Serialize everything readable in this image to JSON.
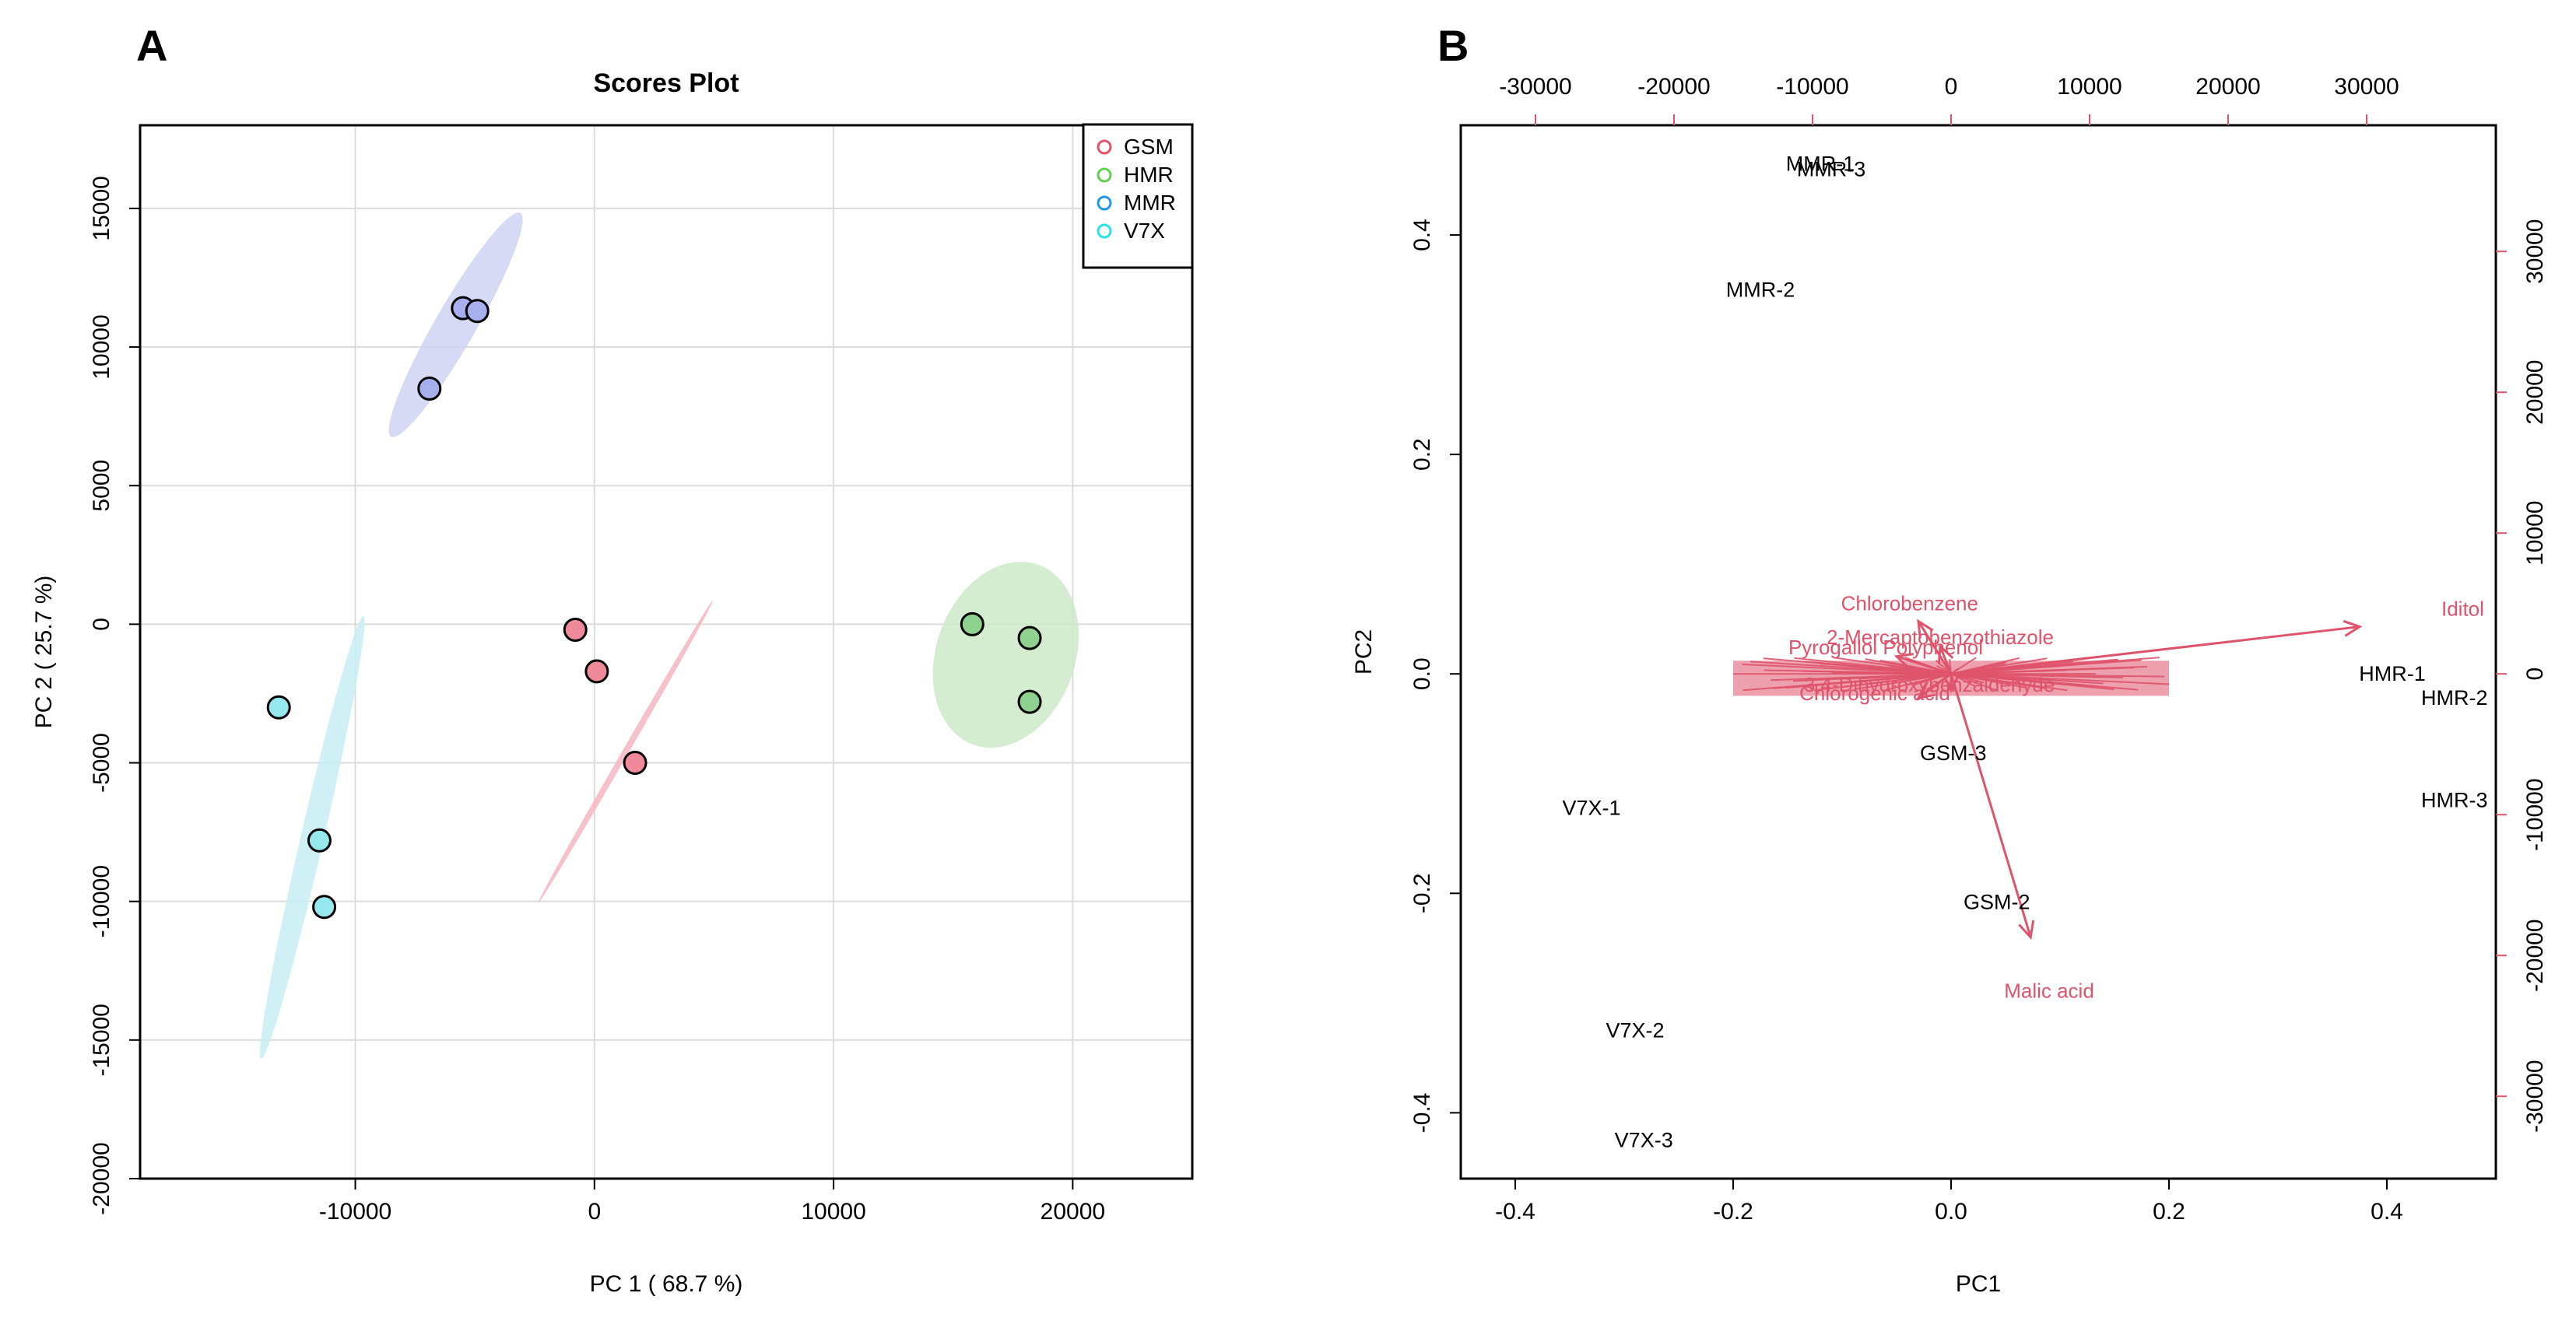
{
  "chart_data": [
    {
      "panel_label": "A",
      "type": "scatter",
      "title": "Scores Plot",
      "xlabel": "PC 1 ( 68.7 %)",
      "ylabel": "PC 2 ( 25.7 %)",
      "xlim": [
        -19000,
        25000
      ],
      "ylim": [
        -20000,
        18000
      ],
      "xticks": [
        -10000,
        0,
        10000,
        20000
      ],
      "yticks": [
        -20000,
        -15000,
        -10000,
        -5000,
        0,
        5000,
        10000,
        15000
      ],
      "grid": true,
      "legend_position": "top-right",
      "series": [
        {
          "name": "GSM",
          "color": "#f08a9b",
          "legend_color": "#df536b",
          "points": [
            [
              -800,
              -200
            ],
            [
              100,
              -1700
            ],
            [
              1700,
              -5000
            ]
          ],
          "ellipse": {
            "cx": 1300,
            "cy": -4600,
            "rx": 7300,
            "ry": 130,
            "angle_deg": 60,
            "fill": "#f4b6c1"
          }
        },
        {
          "name": "HMR",
          "color": "#8fd18f",
          "legend_color": "#61d04f",
          "points": [
            [
              15800,
              0
            ],
            [
              18200,
              -500
            ],
            [
              18200,
              -2800
            ]
          ],
          "ellipse": {
            "cx": 17200,
            "cy": -1100,
            "rx": 2900,
            "ry": 4000,
            "angle_deg": -20,
            "fill": "#cde9c8"
          }
        },
        {
          "name": "MMR",
          "color": "#a6b0ee",
          "legend_color": "#2297e6",
          "points": [
            [
              -5500,
              11400
            ],
            [
              -4900,
              11300
            ],
            [
              -6900,
              8500
            ]
          ],
          "ellipse": {
            "cx": -5800,
            "cy": 10800,
            "rx": 5400,
            "ry": 850,
            "angle_deg": 60,
            "fill": "#cfd4f3"
          }
        },
        {
          "name": "V7X",
          "color": "#96e8ef",
          "legend_color": "#28e2e5",
          "points": [
            [
              -13200,
              -3000
            ],
            [
              -11500,
              -7800
            ],
            [
              -11300,
              -10200
            ]
          ],
          "ellipse": {
            "cx": -11800,
            "cy": -7700,
            "rx": 9500,
            "ry": 480,
            "angle_deg": 77,
            "fill": "#c7eff5"
          }
        }
      ]
    },
    {
      "panel_label": "B",
      "type": "scatter",
      "subtype": "biplot",
      "title": "",
      "xlabel": "PC1",
      "ylabel": "PC2",
      "xlim": [
        -0.45,
        0.5
      ],
      "ylim": [
        -0.46,
        0.5
      ],
      "xticks": [
        -0.4,
        -0.2,
        0.0,
        0.2,
        0.4
      ],
      "yticks": [
        -0.4,
        -0.2,
        0.0,
        0.2,
        0.4
      ],
      "top_ticks": [
        -30000,
        -20000,
        -10000,
        0,
        10000,
        20000,
        30000
      ],
      "right_ticks": [
        -30000,
        -20000,
        -10000,
        0,
        10000,
        20000,
        30000
      ],
      "grid": false,
      "arrow_color": "#df536b",
      "samples": [
        {
          "label": "MMR-1",
          "x": -0.12,
          "y": 0.465
        },
        {
          "label": "MMR-3",
          "x": -0.11,
          "y": 0.46
        },
        {
          "label": "MMR-2",
          "x": -0.175,
          "y": 0.35
        },
        {
          "label": "HMR-1",
          "x": 0.405,
          "y": 0.0
        },
        {
          "label": "HMR-2",
          "x": 0.462,
          "y": -0.022
        },
        {
          "label": "HMR-3",
          "x": 0.462,
          "y": -0.115
        },
        {
          "label": "GSM-3",
          "x": 0.002,
          "y": -0.072
        },
        {
          "label": "GSM-2",
          "x": 0.042,
          "y": -0.208
        },
        {
          "label": "V7X-1",
          "x": -0.33,
          "y": -0.122
        },
        {
          "label": "V7X-2",
          "x": -0.29,
          "y": -0.325
        },
        {
          "label": "V7X-3",
          "x": -0.282,
          "y": -0.425
        }
      ],
      "loadings": [
        {
          "label": "Iditol",
          "x": 0.375,
          "y": 0.043,
          "lx": 0.45,
          "ly": 0.053,
          "anchor": "start"
        },
        {
          "label": "Malic acid",
          "x": 0.073,
          "y": -0.24,
          "lx": 0.09,
          "ly": -0.295,
          "anchor": "middle"
        },
        {
          "label": "Chlorobenzene",
          "x": -0.03,
          "y": 0.048,
          "lx": -0.038,
          "ly": 0.058,
          "anchor": "middle"
        },
        {
          "label": "2-Mercaptobenzothiazole",
          "x": -0.01,
          "y": 0.025,
          "lx": -0.01,
          "ly": 0.027,
          "anchor": "middle"
        },
        {
          "label": "Pyrogallol Polyphenol",
          "x": -0.05,
          "y": 0.016,
          "lx": -0.06,
          "ly": 0.018,
          "anchor": "middle"
        },
        {
          "label": "3,4-Dihydroxybenzaldehyde",
          "x": 0.0,
          "y": -0.015,
          "lx": -0.02,
          "ly": -0.016,
          "anchor": "middle"
        },
        {
          "label": "Chlorogenic acid",
          "x": -0.03,
          "y": -0.022,
          "lx": -0.07,
          "ly": -0.024,
          "anchor": "middle"
        }
      ]
    }
  ]
}
